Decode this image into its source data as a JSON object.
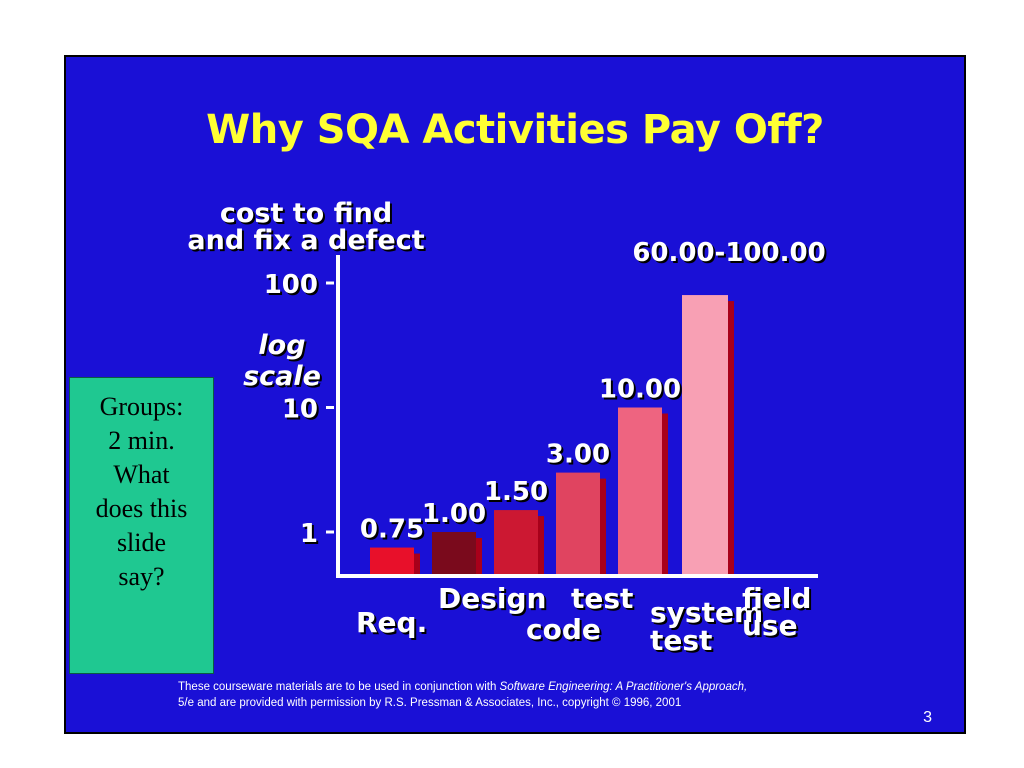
{
  "slide": {
    "title": "Why SQA Activities Pay Off?",
    "note": [
      "Groups:",
      "2 min.",
      "What",
      "does this",
      "slide",
      "say?"
    ],
    "footer_line1_a": "These courseware materials are to be used in conjunction with ",
    "footer_line1_b": "Software Engineering: A Practitioner's Approach,",
    "footer_line2_a": "5/e",
    "footer_line2_b": " and are provided with permission by R.S. Pressman & Associates, Inc., copyright © 1996, 2001",
    "page_number": "3",
    "colors": {
      "background": "#1a10d6",
      "title": "#ffff33",
      "note_box": "#1fc891"
    }
  },
  "chart_data": {
    "type": "bar",
    "ylabel": [
      "cost to find",
      "and fix a defect"
    ],
    "scale_label": [
      "log",
      "scale"
    ],
    "yscale": "log",
    "ylim": [
      0.5,
      120
    ],
    "yticks": [
      {
        "value": 1,
        "label": "1"
      },
      {
        "value": 10,
        "label": "10"
      },
      {
        "value": 100,
        "label": "100"
      }
    ],
    "bars": [
      {
        "category": [
          "Req."
        ],
        "value": 0.75,
        "label": "0.75",
        "color": "#e8102a"
      },
      {
        "category": [
          "Design"
        ],
        "value": 1.0,
        "label": "1.00",
        "color": "#7a0a1c"
      },
      {
        "category": [
          "code"
        ],
        "value": 1.5,
        "label": "1.50",
        "color": "#cc1832"
      },
      {
        "category": [
          "test"
        ],
        "value": 3.0,
        "label": "3.00",
        "color": "#e04460"
      },
      {
        "category": [
          "system",
          "test"
        ],
        "value": 10.0,
        "label": "10.00",
        "color": "#ee6480"
      },
      {
        "category": [
          "field",
          "use"
        ],
        "value": 80,
        "label": "60.00-100.00",
        "color": "#f8a0b4"
      }
    ]
  }
}
